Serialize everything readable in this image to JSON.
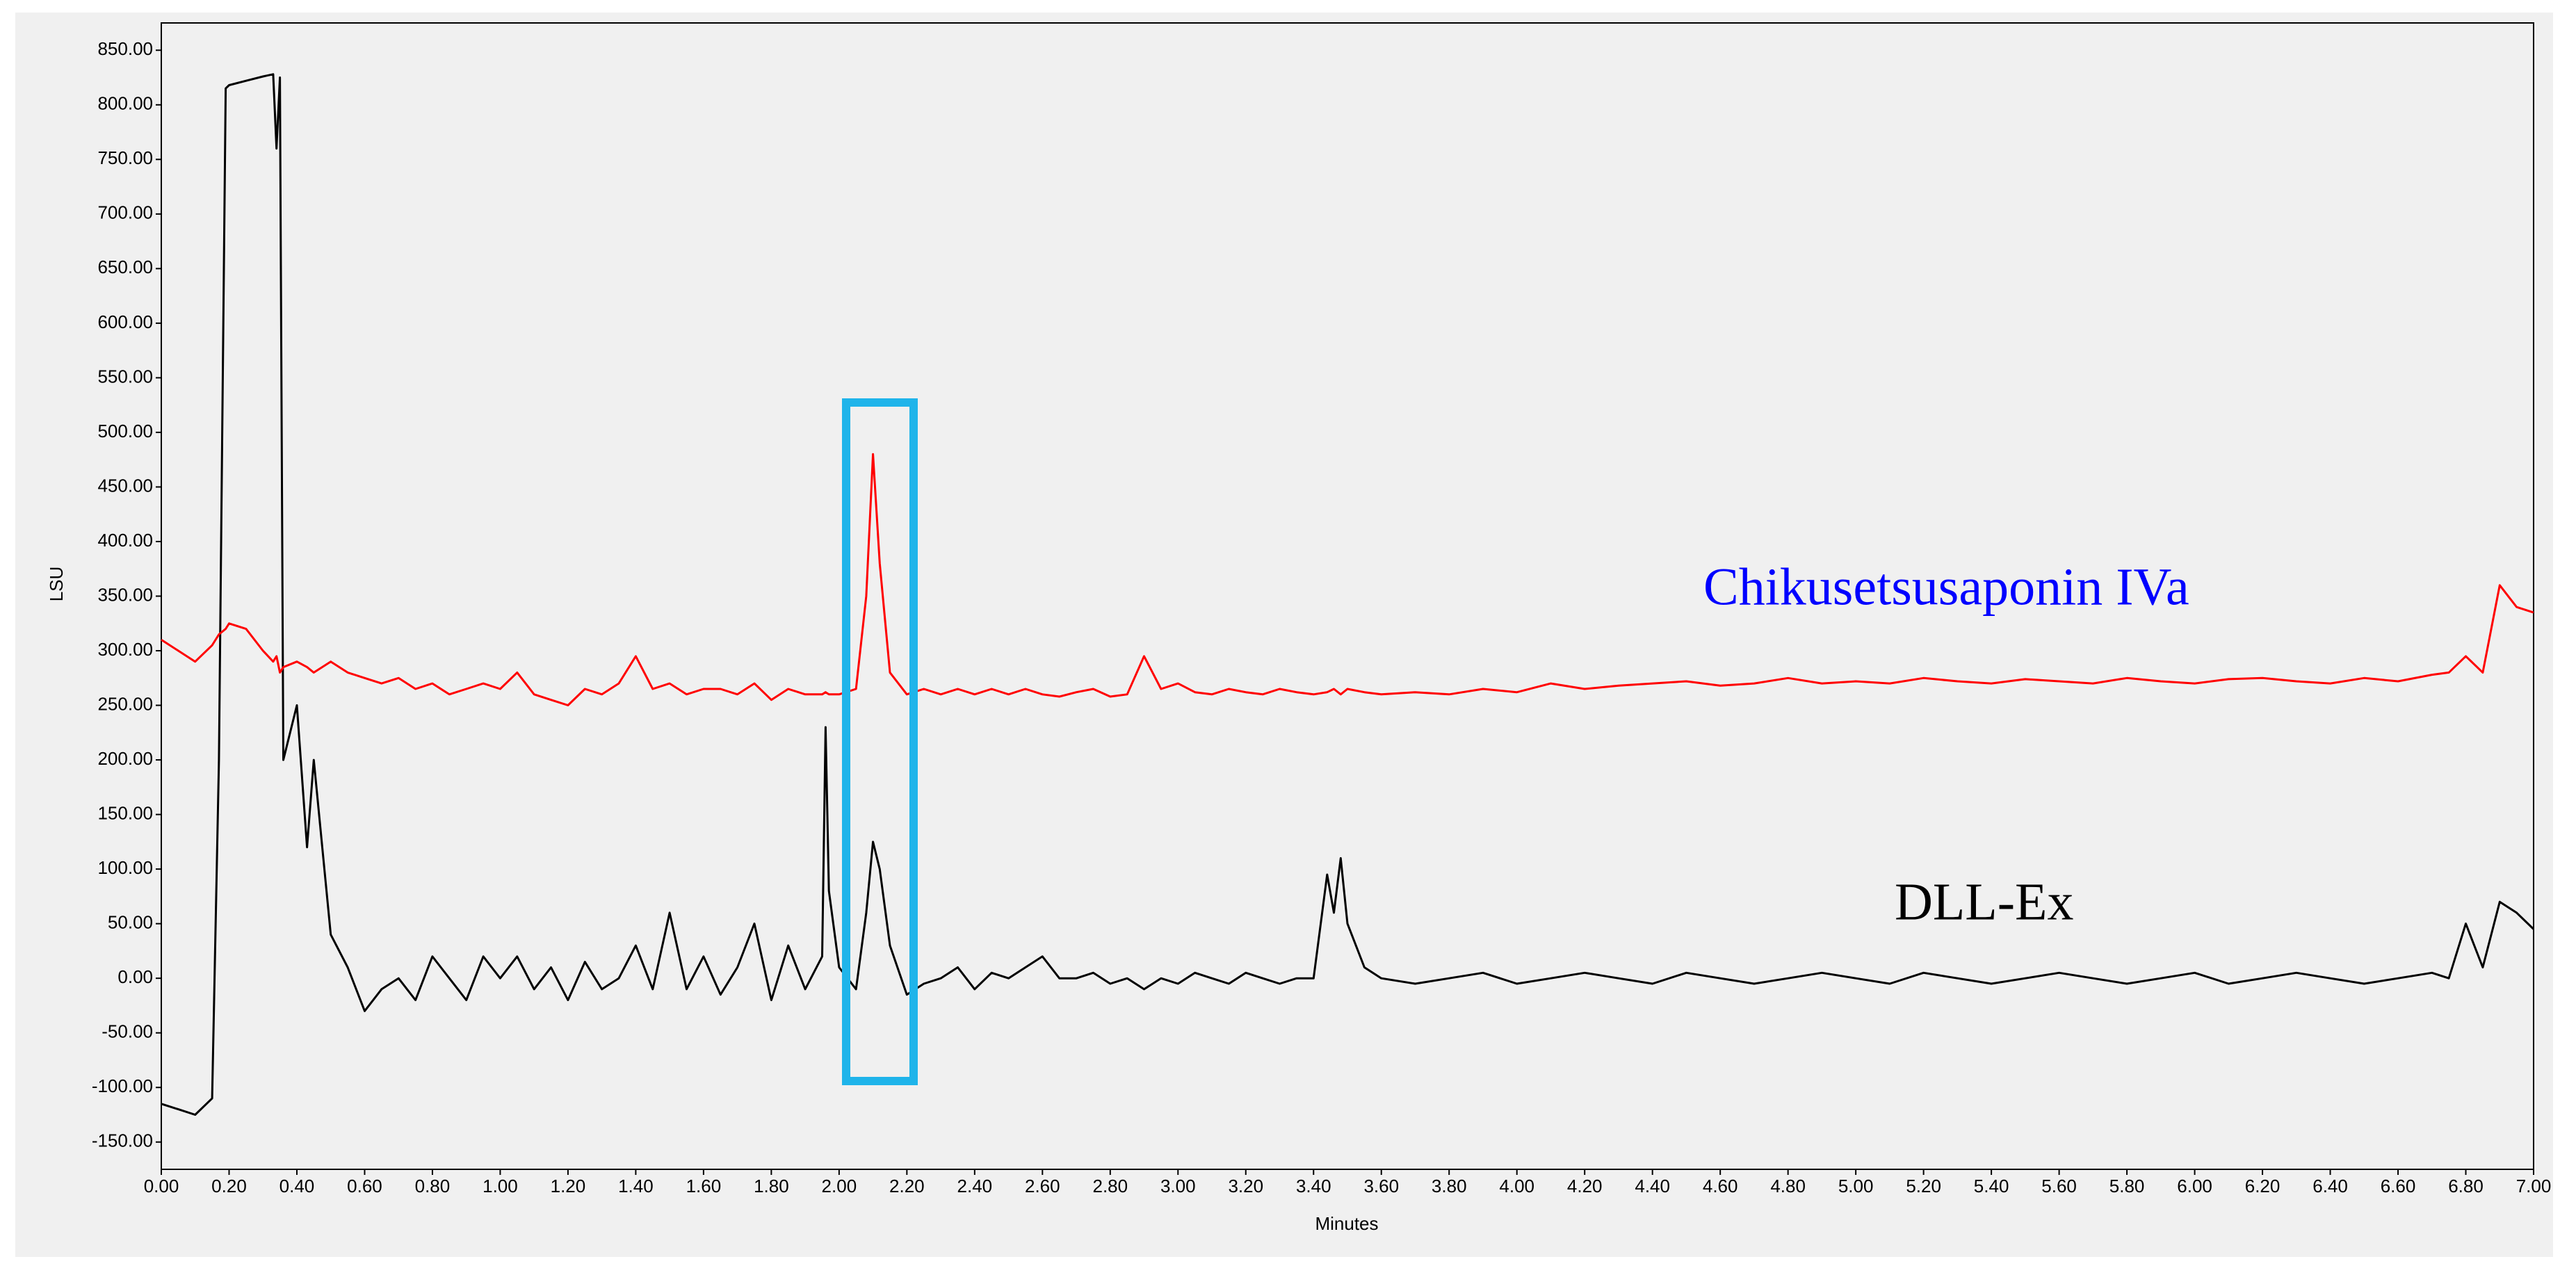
{
  "chart_data": {
    "type": "line",
    "x_label": "Minutes",
    "y_label": "LSU",
    "grid": false,
    "x": [
      0,
      0.05,
      0.1,
      0.15,
      0.17,
      0.19,
      0.2,
      0.25,
      0.3,
      0.33,
      0.34,
      0.35,
      0.36,
      0.4,
      0.43,
      0.45,
      0.5,
      0.55,
      0.6,
      0.65,
      0.7,
      0.75,
      0.8,
      0.85,
      0.9,
      0.95,
      1.0,
      1.05,
      1.1,
      1.15,
      1.2,
      1.25,
      1.3,
      1.35,
      1.4,
      1.45,
      1.5,
      1.55,
      1.6,
      1.65,
      1.7,
      1.75,
      1.8,
      1.85,
      1.9,
      1.95,
      1.96,
      1.97,
      2.0,
      2.05,
      2.08,
      2.1,
      2.12,
      2.15,
      2.2,
      2.25,
      2.3,
      2.35,
      2.4,
      2.45,
      2.5,
      2.55,
      2.6,
      2.65,
      2.7,
      2.75,
      2.8,
      2.85,
      2.9,
      2.95,
      3.0,
      3.05,
      3.1,
      3.15,
      3.2,
      3.25,
      3.3,
      3.35,
      3.4,
      3.44,
      3.46,
      3.48,
      3.5,
      3.55,
      3.6,
      3.7,
      3.8,
      3.9,
      4.0,
      4.1,
      4.2,
      4.3,
      4.4,
      4.5,
      4.6,
      4.7,
      4.8,
      4.9,
      5.0,
      5.1,
      5.2,
      5.3,
      5.4,
      5.5,
      5.6,
      5.7,
      5.8,
      5.9,
      6.0,
      6.1,
      6.2,
      6.3,
      6.4,
      6.5,
      6.6,
      6.7,
      6.75,
      6.8,
      6.85,
      6.9,
      6.95,
      7.0
    ],
    "series": [
      {
        "name": "Chikusetsusaponin IVa",
        "color": "#ff0000",
        "label_color": "#0000ff",
        "values": [
          310,
          300,
          290,
          305,
          315,
          320,
          325,
          320,
          300,
          290,
          295,
          280,
          285,
          290,
          285,
          280,
          290,
          280,
          275,
          270,
          275,
          265,
          270,
          260,
          265,
          270,
          265,
          280,
          260,
          255,
          250,
          265,
          260,
          270,
          295,
          265,
          270,
          260,
          265,
          265,
          260,
          270,
          255,
          265,
          260,
          260,
          262,
          260,
          260,
          265,
          350,
          480,
          380,
          280,
          260,
          265,
          260,
          265,
          260,
          265,
          260,
          265,
          260,
          258,
          262,
          265,
          258,
          260,
          295,
          265,
          270,
          262,
          260,
          265,
          262,
          260,
          265,
          262,
          260,
          262,
          265,
          260,
          265,
          262,
          260,
          262,
          260,
          265,
          262,
          270,
          265,
          268,
          270,
          272,
          268,
          270,
          275,
          270,
          272,
          270,
          275,
          272,
          270,
          274,
          272,
          270,
          275,
          272,
          270,
          274,
          275,
          272,
          270,
          275,
          272,
          278,
          280,
          295,
          280,
          360,
          340,
          335
        ]
      },
      {
        "name": "DLL-Ex",
        "color": "#000000",
        "label_color": "#000000",
        "values": [
          -115,
          -120,
          -125,
          -110,
          200,
          815,
          818,
          822,
          826,
          828,
          760,
          825,
          200,
          250,
          120,
          200,
          40,
          10,
          -30,
          -10,
          0,
          -20,
          20,
          0,
          -20,
          20,
          0,
          20,
          -10,
          10,
          -20,
          15,
          -10,
          0,
          30,
          -10,
          60,
          -10,
          20,
          -15,
          10,
          50,
          -20,
          30,
          -10,
          20,
          230,
          80,
          10,
          -10,
          60,
          125,
          100,
          30,
          -15,
          -5,
          0,
          10,
          -10,
          5,
          0,
          10,
          20,
          0,
          0,
          5,
          -5,
          0,
          -10,
          0,
          -5,
          5,
          0,
          -5,
          5,
          0,
          -5,
          0,
          0,
          95,
          60,
          110,
          50,
          10,
          0,
          -5,
          0,
          5,
          -5,
          0,
          5,
          0,
          -5,
          5,
          0,
          -5,
          0,
          5,
          0,
          -5,
          5,
          0,
          -5,
          0,
          5,
          0,
          -5,
          0,
          5,
          -5,
          0,
          5,
          0,
          -5,
          0,
          5,
          0,
          50,
          10,
          70,
          60,
          45
        ]
      }
    ],
    "xlim": [
      0,
      7
    ],
    "ylim": [
      -175,
      875
    ],
    "xticks": [
      {
        "value": 0,
        "label": "0.00"
      },
      {
        "value": 0.2,
        "label": "0.20"
      },
      {
        "value": 0.4,
        "label": "0.40"
      },
      {
        "value": 0.6,
        "label": "0.60"
      },
      {
        "value": 0.8,
        "label": "0.80"
      },
      {
        "value": 1,
        "label": "1.00"
      },
      {
        "value": 1.2,
        "label": "1.20"
      },
      {
        "value": 1.4,
        "label": "1.40"
      },
      {
        "value": 1.6,
        "label": "1.60"
      },
      {
        "value": 1.8,
        "label": "1.80"
      },
      {
        "value": 2,
        "label": "2.00"
      },
      {
        "value": 2.2,
        "label": "2.20"
      },
      {
        "value": 2.4,
        "label": "2.40"
      },
      {
        "value": 2.6,
        "label": "2.60"
      },
      {
        "value": 2.8,
        "label": "2.80"
      },
      {
        "value": 3,
        "label": "3.00"
      },
      {
        "value": 3.2,
        "label": "3.20"
      },
      {
        "value": 3.4,
        "label": "3.40"
      },
      {
        "value": 3.6,
        "label": "3.60"
      },
      {
        "value": 3.8,
        "label": "3.80"
      },
      {
        "value": 4,
        "label": "4.00"
      },
      {
        "value": 4.2,
        "label": "4.20"
      },
      {
        "value": 4.4,
        "label": "4.40"
      },
      {
        "value": 4.6,
        "label": "4.60"
      },
      {
        "value": 4.8,
        "label": "4.80"
      },
      {
        "value": 5,
        "label": "5.00"
      },
      {
        "value": 5.2,
        "label": "5.20"
      },
      {
        "value": 5.4,
        "label": "5.40"
      },
      {
        "value": 5.6,
        "label": "5.60"
      },
      {
        "value": 5.8,
        "label": "5.80"
      },
      {
        "value": 6,
        "label": "6.00"
      },
      {
        "value": 6.2,
        "label": "6.20"
      },
      {
        "value": 6.4,
        "label": "6.40"
      },
      {
        "value": 6.6,
        "label": "6.60"
      },
      {
        "value": 6.8,
        "label": "6.80"
      },
      {
        "value": 7,
        "label": "7.00"
      }
    ],
    "yticks": [
      {
        "value": -150,
        "label": "-150.00"
      },
      {
        "value": -100,
        "label": "-100.00"
      },
      {
        "value": -50,
        "label": "-50.00"
      },
      {
        "value": 0,
        "label": "0.00"
      },
      {
        "value": 50,
        "label": "50.00"
      },
      {
        "value": 100,
        "label": "100.00"
      },
      {
        "value": 150,
        "label": "150.00"
      },
      {
        "value": 200,
        "label": "200.00"
      },
      {
        "value": 250,
        "label": "250.00"
      },
      {
        "value": 300,
        "label": "300.00"
      },
      {
        "value": 350,
        "label": "350.00"
      },
      {
        "value": 400,
        "label": "400.00"
      },
      {
        "value": 450,
        "label": "450.00"
      },
      {
        "value": 500,
        "label": "500.00"
      },
      {
        "value": 550,
        "label": "550.00"
      },
      {
        "value": 600,
        "label": "600.00"
      },
      {
        "value": 650,
        "label": "650.00"
      },
      {
        "value": 700,
        "label": "700.00"
      },
      {
        "value": 750,
        "label": "750.00"
      },
      {
        "value": 800,
        "label": "800.00"
      },
      {
        "value": 850,
        "label": "850.00"
      }
    ]
  }
}
